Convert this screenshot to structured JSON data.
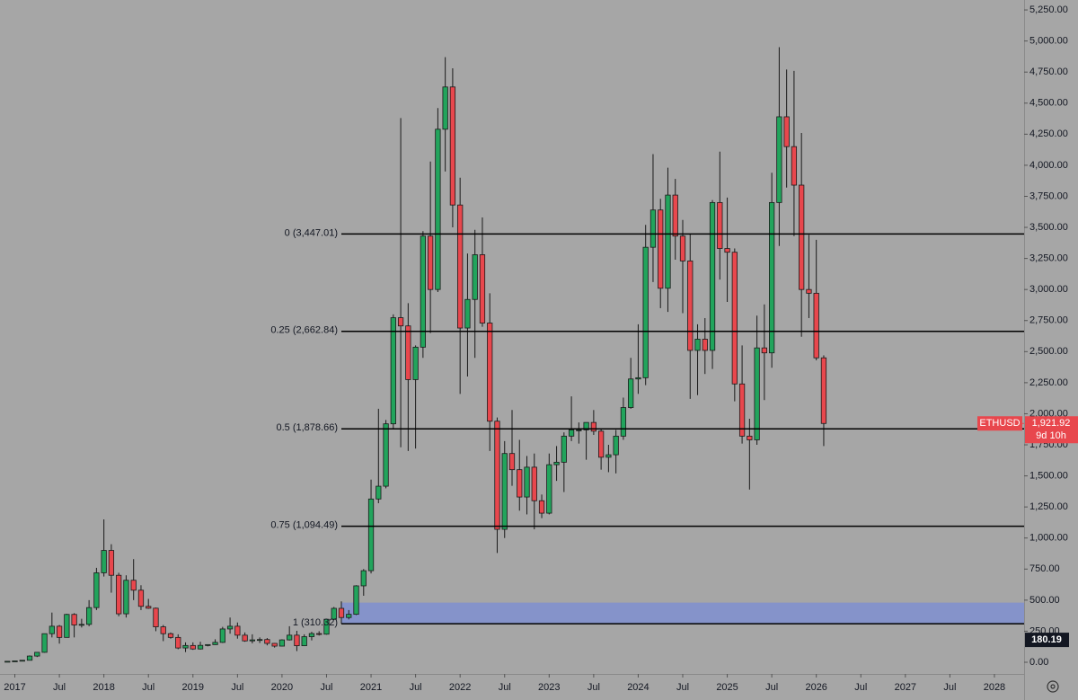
{
  "chart_data": {
    "type": "candlestick",
    "symbol": "ETHUSD",
    "up_color": "#22a45c",
    "down_color": "#e8474d",
    "x": [
      "2016-12",
      "2017-01",
      "2017-02",
      "2017-03",
      "2017-04",
      "2017-05",
      "2017-06",
      "2017-07",
      "2017-08",
      "2017-09",
      "2017-10",
      "2017-11",
      "2017-12",
      "2018-01",
      "2018-02",
      "2018-03",
      "2018-04",
      "2018-05",
      "2018-06",
      "2018-07",
      "2018-08",
      "2018-09",
      "2018-10",
      "2018-11",
      "2018-12",
      "2019-01",
      "2019-02",
      "2019-03",
      "2019-04",
      "2019-05",
      "2019-06",
      "2019-07",
      "2019-08",
      "2019-09",
      "2019-10",
      "2019-11",
      "2019-12",
      "2020-01",
      "2020-02",
      "2020-03",
      "2020-04",
      "2020-05",
      "2020-06",
      "2020-07",
      "2020-08",
      "2020-09",
      "2020-10",
      "2020-11",
      "2020-12",
      "2021-01",
      "2021-02",
      "2021-03",
      "2021-04",
      "2021-05",
      "2021-06",
      "2021-07",
      "2021-08",
      "2021-09",
      "2021-10",
      "2021-11",
      "2021-12",
      "2022-01",
      "2022-02",
      "2022-03",
      "2022-04",
      "2022-05",
      "2022-06",
      "2022-07",
      "2022-08",
      "2022-09",
      "2022-10",
      "2022-11",
      "2022-12",
      "2023-01",
      "2023-02",
      "2023-03",
      "2023-04",
      "2023-05",
      "2023-06",
      "2023-07",
      "2023-08",
      "2023-09",
      "2023-10",
      "2023-11",
      "2023-12",
      "2024-01",
      "2024-02",
      "2024-03",
      "2024-04",
      "2024-05",
      "2024-06",
      "2024-07",
      "2024-08",
      "2024-09",
      "2024-10",
      "2024-11",
      "2024-12",
      "2025-01",
      "2025-02",
      "2025-03",
      "2025-04",
      "2025-05",
      "2025-06",
      "2025-07",
      "2025-08",
      "2025-09",
      "2025-10",
      "2025-11",
      "2025-12",
      "2026-01",
      "2026-02"
    ],
    "open": [
      8,
      8,
      11,
      16,
      50,
      80,
      230,
      290,
      200,
      385,
      300,
      305,
      440,
      720,
      900,
      700,
      390,
      660,
      580,
      450,
      435,
      285,
      230,
      200,
      115,
      135,
      107,
      136,
      142,
      160,
      268,
      290,
      218,
      172,
      180,
      183,
      152,
      130,
      180,
      218,
      133,
      206,
      231,
      226,
      346,
      434,
      360,
      386,
      615,
      737,
      1314,
      1417,
      1919,
      2773,
      2707,
      2275,
      2536,
      3430,
      3000,
      4290,
      4630,
      3680,
      2690,
      2920,
      3280,
      2730,
      1940,
      1070,
      1680,
      1550,
      1330,
      1570,
      1300,
      1200,
      1590,
      1610,
      1820,
      1870,
      1870,
      1930,
      1860,
      1650,
      1670,
      1820,
      2050,
      2280,
      2290,
      3340,
      3640,
      3010,
      3760,
      3430,
      3230,
      2510,
      2600,
      2510,
      3700,
      3330,
      3300,
      2240,
      1820,
      1790,
      2530,
      2490,
      3700,
      4390,
      4150,
      3840,
      3000,
      2970,
      2450
    ],
    "high": [
      9,
      11,
      16,
      55,
      80,
      230,
      400,
      300,
      390,
      395,
      350,
      500,
      760,
      1150,
      950,
      720,
      700,
      830,
      620,
      510,
      440,
      300,
      240,
      225,
      160,
      160,
      165,
      145,
      185,
      285,
      360,
      320,
      240,
      225,
      200,
      195,
      155,
      185,
      290,
      253,
      225,
      245,
      250,
      350,
      445,
      490,
      420,
      620,
      750,
      1470,
      2040,
      1950,
      2800,
      4380,
      2890,
      2550,
      3470,
      4030,
      4460,
      4870,
      4780,
      3900,
      3290,
      3480,
      3580,
      2970,
      1970,
      1780,
      2030,
      1790,
      1660,
      1680,
      1350,
      1680,
      1740,
      1850,
      2140,
      1930,
      1930,
      2030,
      1880,
      1750,
      1870,
      2130,
      2450,
      2720,
      3520,
      4090,
      3730,
      3980,
      3890,
      3560,
      3450,
      2720,
      2770,
      3720,
      4110,
      3740,
      3330,
      2550,
      1960,
      2790,
      2880,
      3940,
      4950,
      4770,
      4760,
      4260,
      3440,
      3400,
      2470
    ],
    "low": [
      6,
      8,
      10,
      15,
      42,
      77,
      200,
      150,
      200,
      200,
      280,
      290,
      420,
      690,
      560,
      370,
      360,
      500,
      420,
      430,
      250,
      170,
      190,
      105,
      82,
      100,
      102,
      128,
      140,
      155,
      230,
      190,
      165,
      152,
      155,
      136,
      118,
      127,
      175,
      90,
      130,
      176,
      215,
      222,
      340,
      310,
      345,
      380,
      535,
      715,
      1280,
      1400,
      1880,
      1730,
      1700,
      1720,
      2450,
      2650,
      2980,
      3950,
      3500,
      2160,
      2300,
      2450,
      2700,
      1700,
      880,
      1000,
      1420,
      1220,
      1190,
      1070,
      1160,
      1190,
      1460,
      1370,
      1780,
      1760,
      1630,
      1830,
      1550,
      1530,
      1520,
      1790,
      2040,
      2160,
      2230,
      3060,
      2850,
      2820,
      3240,
      2810,
      2120,
      2150,
      2320,
      2360,
      3080,
      2900,
      2100,
      1760,
      1390,
      1750,
      2110,
      2370,
      3350,
      3820,
      3430,
      2620,
      2770,
      2430,
      1740
    ],
    "close": [
      8,
      11,
      16,
      50,
      80,
      230,
      290,
      200,
      385,
      300,
      305,
      440,
      720,
      900,
      700,
      390,
      660,
      580,
      450,
      435,
      285,
      230,
      200,
      115,
      135,
      107,
      136,
      142,
      160,
      268,
      290,
      218,
      172,
      180,
      183,
      152,
      130,
      180,
      218,
      133,
      206,
      231,
      226,
      346,
      434,
      360,
      386,
      615,
      737,
      1314,
      1417,
      1919,
      2773,
      2707,
      2275,
      2536,
      3430,
      3000,
      4290,
      4630,
      3680,
      2690,
      2920,
      3280,
      2730,
      1940,
      1070,
      1680,
      1550,
      1330,
      1570,
      1300,
      1200,
      1590,
      1610,
      1820,
      1870,
      1870,
      1930,
      1860,
      1650,
      1670,
      1820,
      2050,
      2280,
      2290,
      3340,
      3640,
      3010,
      3760,
      3430,
      3230,
      2510,
      2600,
      2510,
      3700,
      3330,
      3300,
      2240,
      1820,
      1790,
      2530,
      2490,
      3700,
      4390,
      4150,
      3840,
      3000,
      2970,
      2450,
      1921.92
    ],
    "xlim": [
      "2016-12",
      "2028-05"
    ],
    "xticks": [
      {
        "value": "2017-01",
        "label": "2017"
      },
      {
        "value": "2017-07",
        "label": "Jul"
      },
      {
        "value": "2018-01",
        "label": "2018"
      },
      {
        "value": "2018-07",
        "label": "Jul"
      },
      {
        "value": "2019-01",
        "label": "2019"
      },
      {
        "value": "2019-07",
        "label": "Jul"
      },
      {
        "value": "2020-01",
        "label": "2020"
      },
      {
        "value": "2020-07",
        "label": "Jul"
      },
      {
        "value": "2021-01",
        "label": "2021"
      },
      {
        "value": "2021-07",
        "label": "Jul"
      },
      {
        "value": "2022-01",
        "label": "2022"
      },
      {
        "value": "2022-07",
        "label": "Jul"
      },
      {
        "value": "2023-01",
        "label": "2023"
      },
      {
        "value": "2023-07",
        "label": "Jul"
      },
      {
        "value": "2024-01",
        "label": "2024"
      },
      {
        "value": "2024-07",
        "label": "Jul"
      },
      {
        "value": "2025-01",
        "label": "2025"
      },
      {
        "value": "2025-07",
        "label": "Jul"
      },
      {
        "value": "2026-01",
        "label": "2026"
      },
      {
        "value": "2026-07",
        "label": "Jul"
      },
      {
        "value": "2027-01",
        "label": "2027"
      },
      {
        "value": "2027-07",
        "label": "Jul"
      },
      {
        "value": "2028-01",
        "label": "2028"
      }
    ],
    "ylim": [
      -94,
      5330
    ],
    "yticks": [
      {
        "value": 0,
        "label": "0.00"
      },
      {
        "value": 250,
        "label": "250.00"
      },
      {
        "value": 500,
        "label": "500.00"
      },
      {
        "value": 750,
        "label": "750.00"
      },
      {
        "value": 1000,
        "label": "1,000.00"
      },
      {
        "value": 1250,
        "label": "1,250.00"
      },
      {
        "value": 1500,
        "label": "1,500.00"
      },
      {
        "value": 1750,
        "label": "1,750.00"
      },
      {
        "value": 2000,
        "label": "2,000.00"
      },
      {
        "value": 2250,
        "label": "2,250.00"
      },
      {
        "value": 2500,
        "label": "2,500.00"
      },
      {
        "value": 2750,
        "label": "2,750.00"
      },
      {
        "value": 3000,
        "label": "3,000.00"
      },
      {
        "value": 3250,
        "label": "3,250.00"
      },
      {
        "value": 3500,
        "label": "3,500.00"
      },
      {
        "value": 3750,
        "label": "3,750.00"
      },
      {
        "value": 4000,
        "label": "4,000.00"
      },
      {
        "value": 4250,
        "label": "4,250.00"
      },
      {
        "value": 4500,
        "label": "4,500.00"
      },
      {
        "value": 4750,
        "label": "4,750.00"
      },
      {
        "value": 5000,
        "label": "5,000.00"
      },
      {
        "value": 5250,
        "label": "5,250.00"
      }
    ],
    "fib_start": "2020-09",
    "fib_levels": [
      {
        "value": 3447.01,
        "label": "0 (3,447.01)"
      },
      {
        "value": 2662.84,
        "label": "0.25 (2,662.84)"
      },
      {
        "value": 1878.66,
        "label": "0.5 (1,878.66)"
      },
      {
        "value": 1094.49,
        "label": "0.75 (1,094.49)"
      },
      {
        "value": 310.32,
        "label": "1 (310.32)"
      }
    ],
    "zone": {
      "from": 310.32,
      "to": 480,
      "color": "#7f8fd0"
    },
    "last_price": {
      "value": 1921.92,
      "label": "1,921.92"
    },
    "countdown": "9d 10h",
    "crosshair_price": 180.19
  }
}
